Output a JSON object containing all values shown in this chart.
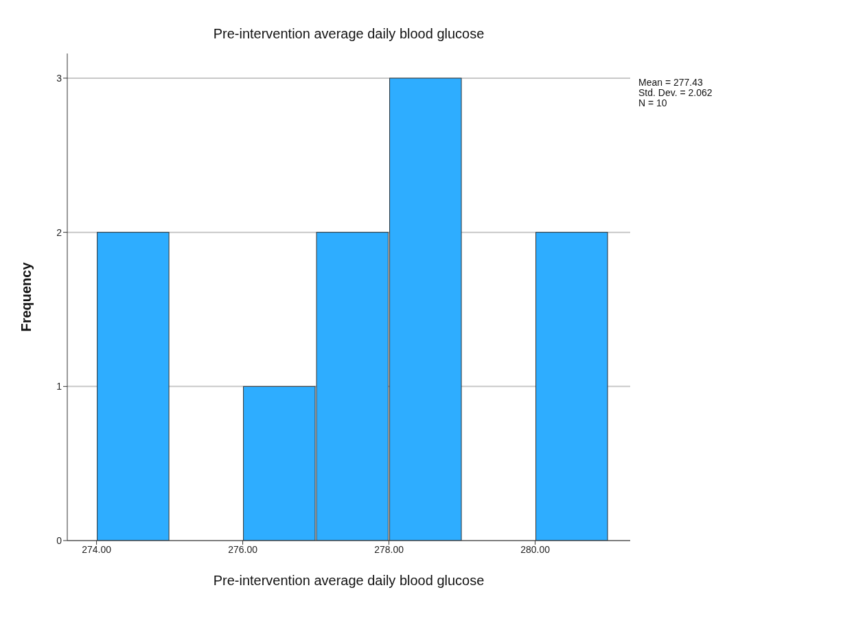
{
  "chart_data": {
    "type": "histogram",
    "title": "Pre-intervention average daily blood glucose",
    "xlabel": "Pre-intervention average daily blood glucose",
    "ylabel": "Frequency",
    "bins": [
      274,
      275,
      276,
      277,
      278,
      279,
      280,
      281
    ],
    "values": [
      2,
      0,
      1,
      2,
      3,
      0,
      2
    ],
    "color": "#2eadff",
    "xlim": [
      273.6,
      281.3
    ],
    "xticks": [
      {
        "value": 274,
        "label": "274.00"
      },
      {
        "value": 276,
        "label": "276.00"
      },
      {
        "value": 278,
        "label": "278.00"
      },
      {
        "value": 280,
        "label": "280.00"
      }
    ],
    "ylim": [
      0,
      3.16
    ],
    "yticks": [
      0,
      1,
      2,
      3
    ],
    "grid": "y",
    "annotations": [
      "Mean = 277.43",
      "Std. Dev. = 2.062",
      "N = 10"
    ]
  }
}
